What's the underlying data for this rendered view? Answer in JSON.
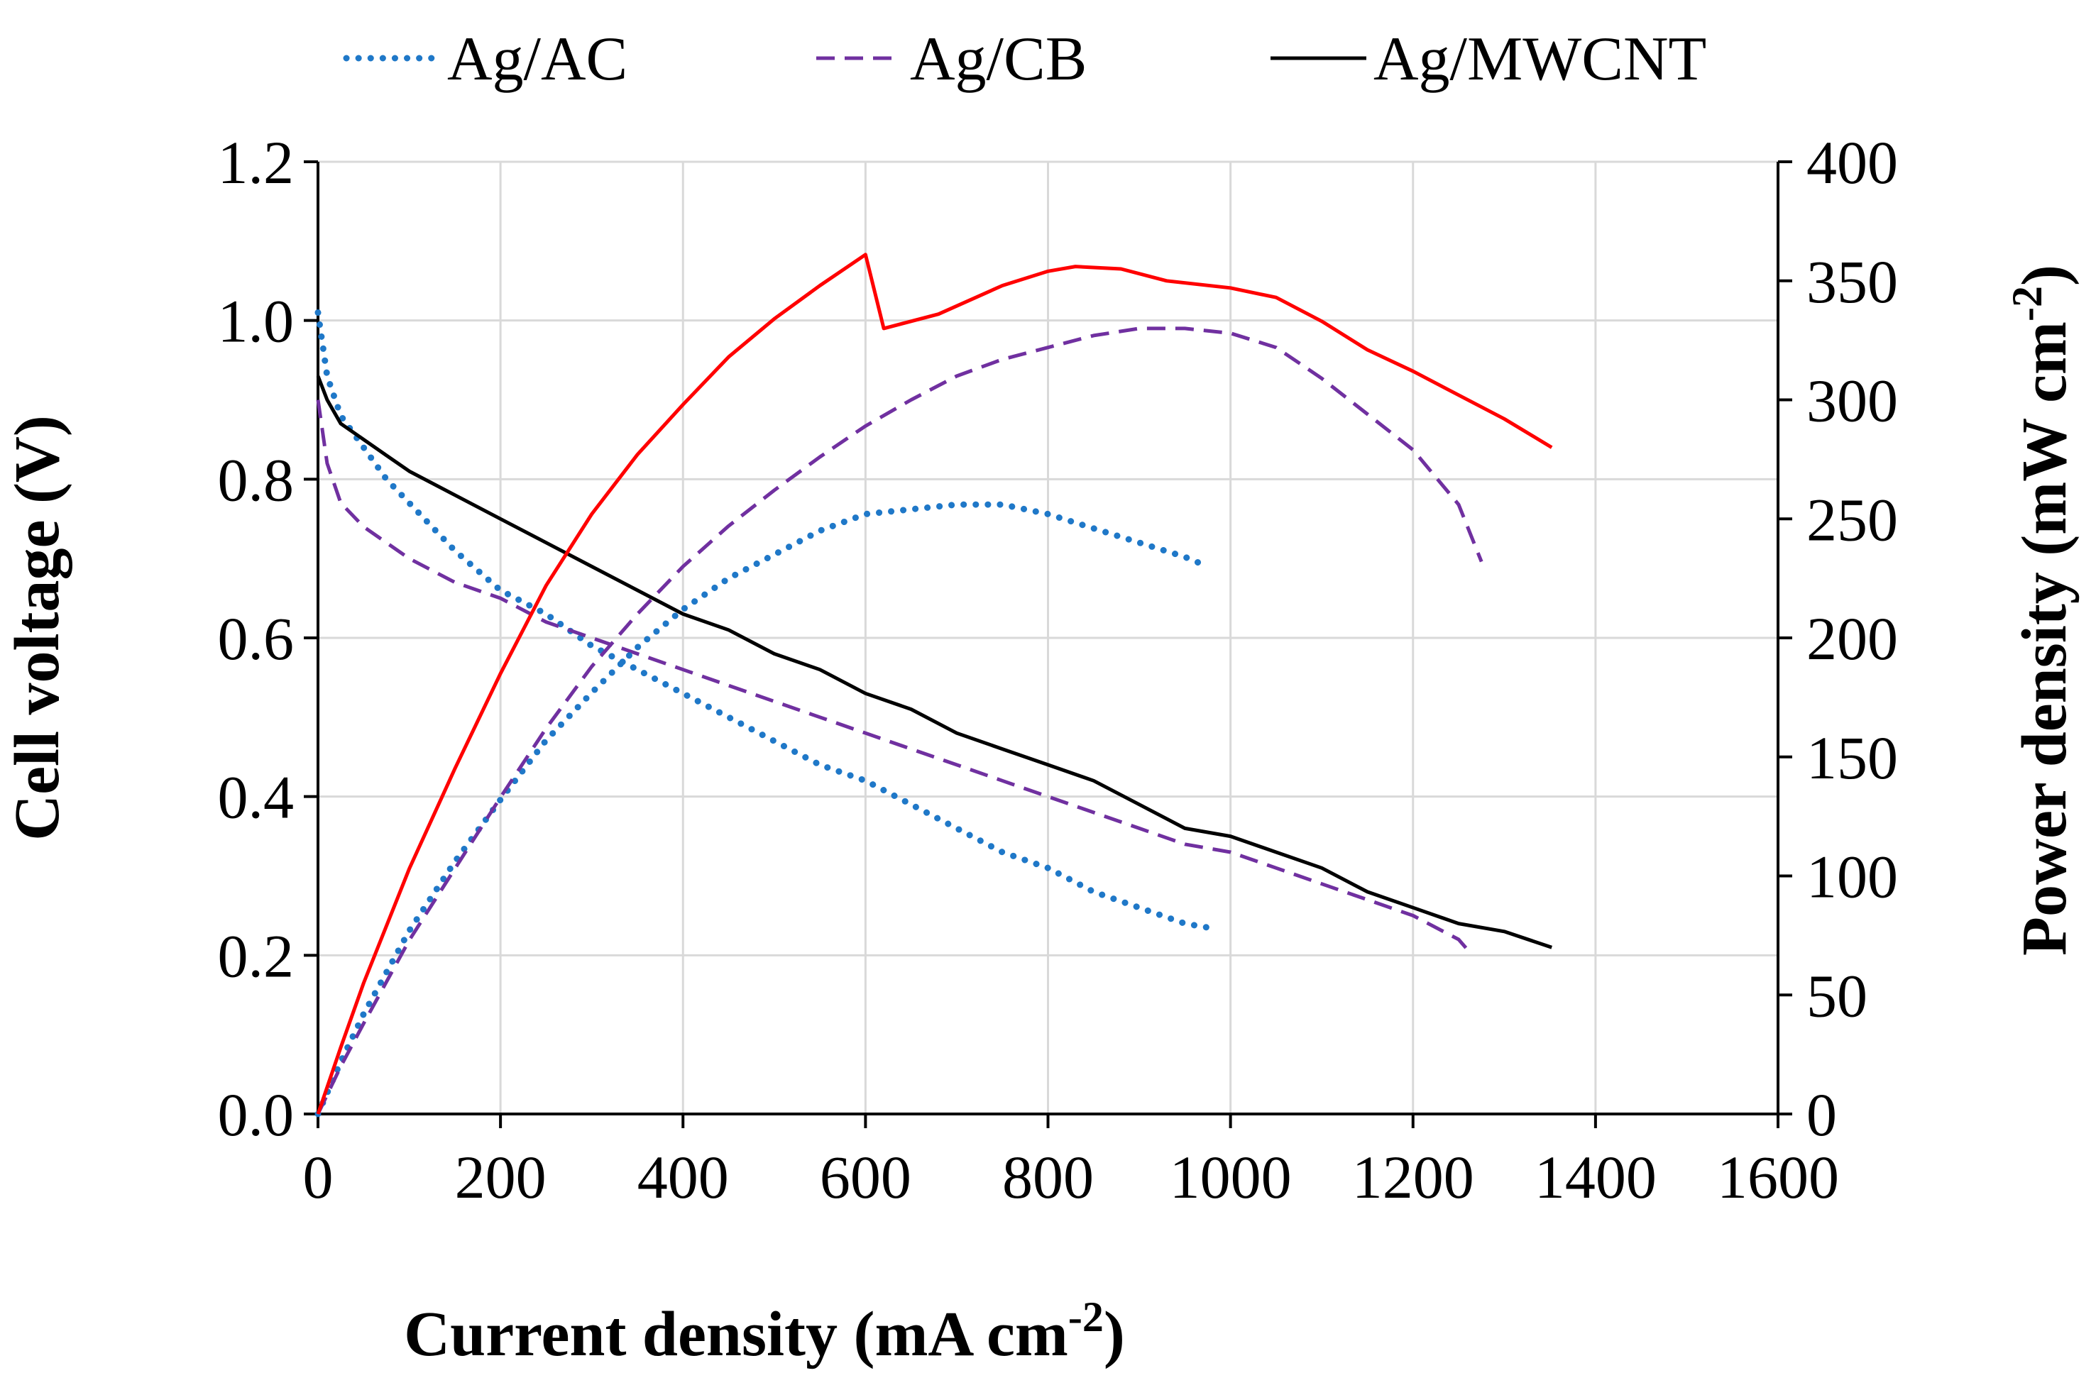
{
  "chart_data": {
    "type": "line",
    "xlabel": "Current density (mA cm",
    "xlabel_sup": "-2",
    "xlabel_end": ")",
    "ylabel": "Cell voltage (V)",
    "y2label": "Power density (mW cm",
    "y2label_sup": "-2",
    "y2label_end": ")",
    "xlim": [
      0,
      1600
    ],
    "ylim": [
      0,
      1.2
    ],
    "y2lim": [
      0,
      400
    ],
    "grid": true,
    "legend_position": "top",
    "x_ticks": [
      "0",
      "200",
      "400",
      "600",
      "800",
      "1000",
      "1200",
      "1400",
      "1600"
    ],
    "y_ticks": [
      "0.0",
      "0.2",
      "0.4",
      "0.6",
      "0.8",
      "1.0",
      "1.2"
    ],
    "y2_ticks": [
      "0",
      "50",
      "100",
      "150",
      "200",
      "250",
      "300",
      "350",
      "400"
    ],
    "legend": [
      {
        "name": "Ag/AC",
        "style": "dotted",
        "color": "#1f78c8"
      },
      {
        "name": "Ag/CB",
        "style": "dashed",
        "color": "#7030a0"
      },
      {
        "name": "Ag/MWCNT",
        "style": "solid",
        "color": "#000000"
      }
    ],
    "series": [
      {
        "name": "Ag/AC voltage",
        "axis": "left",
        "style": "dotted",
        "color": "#1f78c8",
        "x": [
          0,
          10,
          25,
          50,
          75,
          100,
          150,
          200,
          250,
          300,
          350,
          400,
          450,
          500,
          550,
          600,
          650,
          700,
          750,
          800,
          850,
          900,
          950,
          975
        ],
        "y": [
          1.01,
          0.93,
          0.88,
          0.84,
          0.8,
          0.77,
          0.71,
          0.66,
          0.63,
          0.59,
          0.56,
          0.53,
          0.5,
          0.47,
          0.44,
          0.42,
          0.39,
          0.36,
          0.33,
          0.31,
          0.28,
          0.26,
          0.24,
          0.235
        ]
      },
      {
        "name": "Ag/CB voltage",
        "axis": "left",
        "style": "dashed",
        "color": "#7030a0",
        "x": [
          0,
          10,
          25,
          50,
          75,
          100,
          150,
          200,
          250,
          300,
          350,
          400,
          450,
          500,
          550,
          600,
          650,
          700,
          750,
          800,
          850,
          900,
          950,
          1000,
          1050,
          1100,
          1150,
          1200,
          1250,
          1265
        ],
        "y": [
          0.9,
          0.82,
          0.77,
          0.74,
          0.72,
          0.7,
          0.67,
          0.65,
          0.62,
          0.6,
          0.58,
          0.56,
          0.54,
          0.52,
          0.5,
          0.48,
          0.46,
          0.44,
          0.42,
          0.4,
          0.38,
          0.36,
          0.34,
          0.33,
          0.31,
          0.29,
          0.27,
          0.25,
          0.22,
          0.2
        ]
      },
      {
        "name": "Ag/MWCNT voltage",
        "axis": "left",
        "style": "solid",
        "color": "#000000",
        "x": [
          0,
          10,
          25,
          50,
          75,
          100,
          150,
          200,
          250,
          300,
          350,
          400,
          450,
          500,
          550,
          600,
          650,
          700,
          750,
          800,
          850,
          900,
          950,
          1000,
          1050,
          1100,
          1150,
          1200,
          1250,
          1300,
          1352
        ],
        "y": [
          0.93,
          0.9,
          0.87,
          0.85,
          0.83,
          0.81,
          0.78,
          0.75,
          0.72,
          0.69,
          0.66,
          0.63,
          0.61,
          0.58,
          0.56,
          0.53,
          0.51,
          0.48,
          0.46,
          0.44,
          0.42,
          0.39,
          0.36,
          0.35,
          0.33,
          0.31,
          0.28,
          0.26,
          0.24,
          0.23,
          0.21
        ]
      },
      {
        "name": "Ag/AC power",
        "axis": "right",
        "style": "dotted",
        "color": "#1f78c8",
        "x": [
          0,
          25,
          50,
          100,
          150,
          200,
          250,
          300,
          350,
          400,
          450,
          500,
          550,
          600,
          650,
          700,
          750,
          800,
          850,
          900,
          950,
          975
        ],
        "y": [
          0,
          22,
          42,
          77,
          106,
          132,
          157,
          177,
          196,
          212,
          225,
          235,
          245,
          252,
          254,
          256,
          256,
          252,
          246,
          240,
          234,
          230
        ]
      },
      {
        "name": "Ag/CB power",
        "axis": "right",
        "style": "dashed",
        "color": "#7030a0",
        "x": [
          0,
          25,
          50,
          100,
          150,
          200,
          250,
          300,
          350,
          400,
          450,
          500,
          550,
          600,
          650,
          700,
          750,
          800,
          850,
          900,
          950,
          1000,
          1050,
          1100,
          1150,
          1200,
          1250,
          1275
        ],
        "y": [
          0,
          20,
          38,
          73,
          103,
          133,
          162,
          188,
          210,
          230,
          247,
          262,
          276,
          289,
          300,
          310,
          317,
          322,
          327,
          330,
          330,
          328,
          322,
          309,
          294,
          279,
          256,
          232
        ]
      },
      {
        "name": "Ag/MWCNT power",
        "axis": "right",
        "style": "solid",
        "color": "#ff0000",
        "x": [
          0,
          25,
          50,
          100,
          150,
          200,
          250,
          300,
          350,
          400,
          450,
          500,
          550,
          600,
          620,
          680,
          750,
          800,
          830,
          880,
          930,
          1000,
          1050,
          1100,
          1150,
          1200,
          1250,
          1300,
          1352
        ],
        "y": [
          0,
          28,
          55,
          103,
          145,
          185,
          222,
          252,
          277,
          298,
          318,
          334,
          348,
          361,
          330,
          336,
          348,
          354,
          356,
          355,
          350,
          347,
          343,
          333,
          321,
          312,
          302,
          292,
          280
        ]
      }
    ]
  }
}
